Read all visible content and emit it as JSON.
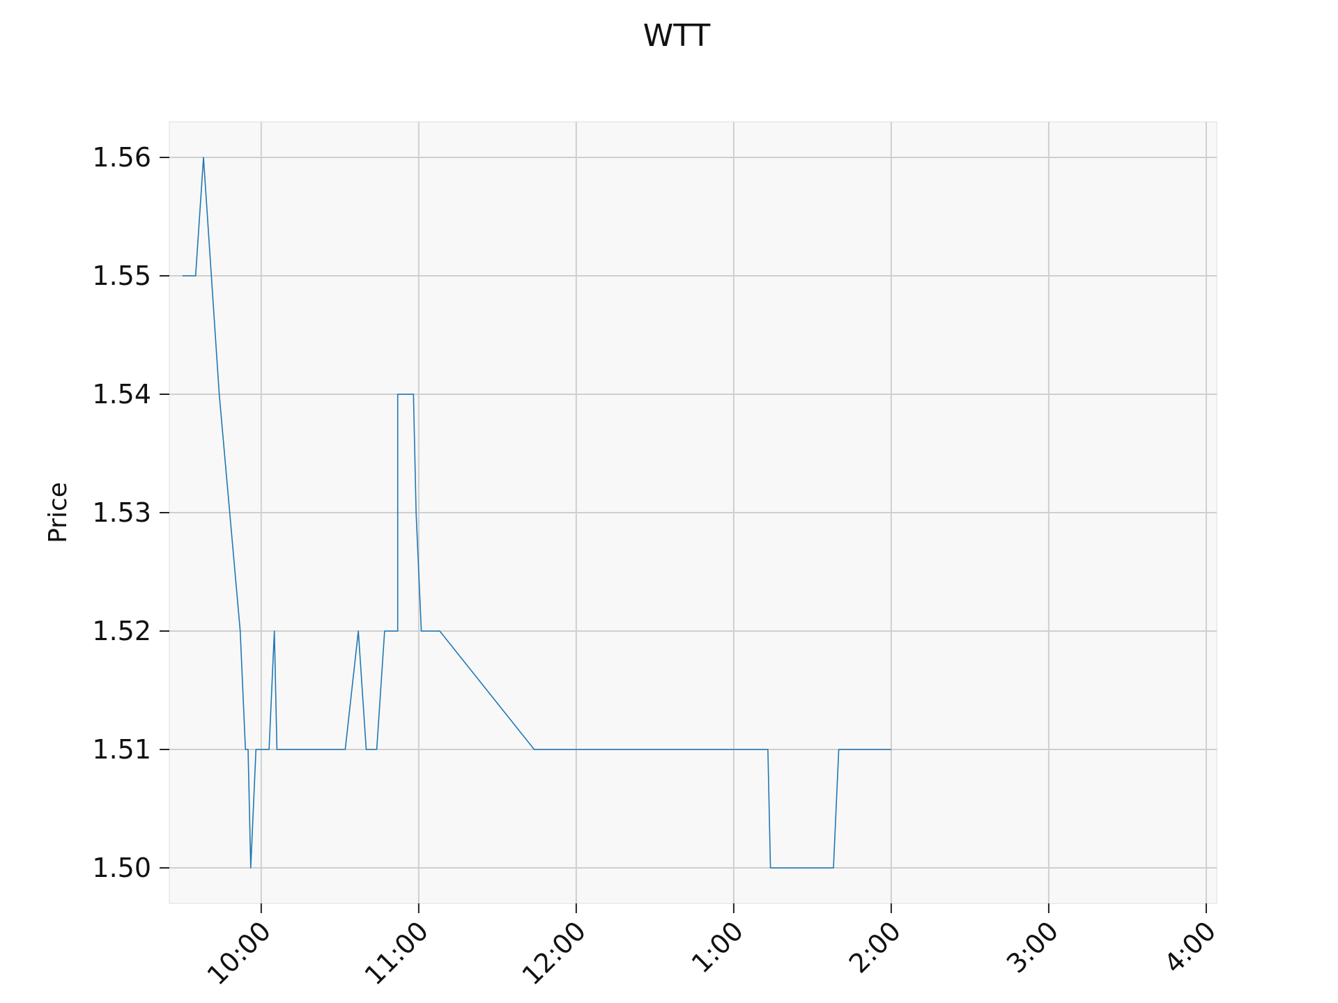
{
  "chart_data": {
    "type": "line",
    "title": "WTT",
    "xlabel": "",
    "ylabel": "Price",
    "x_ticks": [
      "10:00",
      "11:00",
      "12:00",
      "1:00",
      "2:00",
      "3:00",
      "4:00"
    ],
    "y_ticks": [
      "1.50",
      "1.51",
      "1.52",
      "1.53",
      "1.54",
      "1.55",
      "1.56"
    ],
    "ylim": [
      1.497,
      1.563
    ],
    "xlim": [
      "9:25",
      "16:04"
    ],
    "grid": true,
    "legend": "none",
    "series": [
      {
        "color": "#1f77b4",
        "points": [
          {
            "t": "9:30",
            "y": 1.55
          },
          {
            "t": "9:35",
            "y": 1.55
          },
          {
            "t": "9:38",
            "y": 1.56
          },
          {
            "t": "9:44",
            "y": 1.54
          },
          {
            "t": "9:52",
            "y": 1.52
          },
          {
            "t": "9:54",
            "y": 1.51
          },
          {
            "t": "9:55",
            "y": 1.51
          },
          {
            "t": "9:56",
            "y": 1.5
          },
          {
            "t": "9:58",
            "y": 1.51
          },
          {
            "t": "10:03",
            "y": 1.51
          },
          {
            "t": "10:05",
            "y": 1.52
          },
          {
            "t": "10:06",
            "y": 1.51
          },
          {
            "t": "10:32",
            "y": 1.51
          },
          {
            "t": "10:37",
            "y": 1.52
          },
          {
            "t": "10:40",
            "y": 1.51
          },
          {
            "t": "10:44",
            "y": 1.51
          },
          {
            "t": "10:47",
            "y": 1.52
          },
          {
            "t": "10:52",
            "y": 1.52
          },
          {
            "t": "10:52",
            "y": 1.54
          },
          {
            "t": "10:58",
            "y": 1.54
          },
          {
            "t": "10:59",
            "y": 1.53
          },
          {
            "t": "11:01",
            "y": 1.52
          },
          {
            "t": "11:08",
            "y": 1.52
          },
          {
            "t": "11:44",
            "y": 1.51
          },
          {
            "t": "13:13",
            "y": 1.51
          },
          {
            "t": "13:14",
            "y": 1.5
          },
          {
            "t": "13:38",
            "y": 1.5
          },
          {
            "t": "13:40",
            "y": 1.51
          },
          {
            "t": "14:00",
            "y": 1.51
          }
        ]
      }
    ]
  }
}
